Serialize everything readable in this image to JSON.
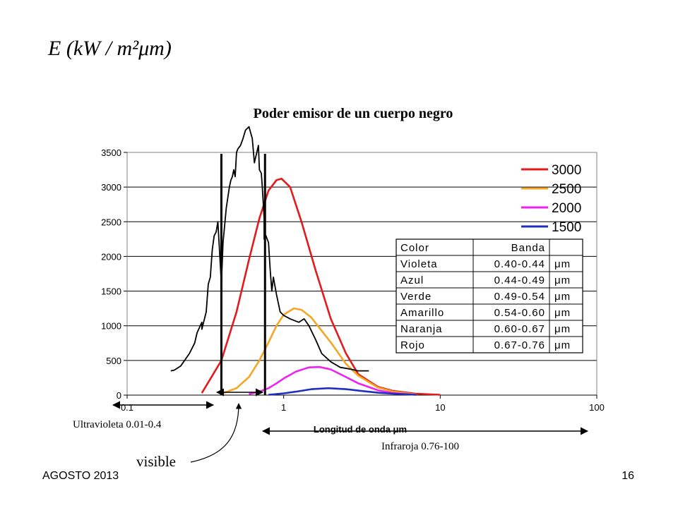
{
  "slide": {
    "yaxis_label": "E (kW / m²μm)",
    "footer_left": "AGOSTO 2013",
    "footer_right": "16",
    "uv_label": "Ultravioleta 0.01-0.4",
    "ir_label": "Infraroja 0.76-100",
    "visible_label": "visible"
  },
  "chart_data": {
    "type": "line",
    "title": "Poder emisor de un cuerpo negro",
    "xlabel": "Longitud de onda μm",
    "ylabel": "",
    "xscale": "log",
    "xlim": [
      0.1,
      100
    ],
    "ylim": [
      0,
      3500
    ],
    "xticks": [
      "0.1",
      "1",
      "10",
      "100"
    ],
    "yticks": [
      "0",
      "500",
      "1000",
      "1500",
      "2000",
      "2500",
      "3000",
      "3500"
    ],
    "grid": "horizontal",
    "legend_position": "top-right",
    "series": [
      {
        "name": "3000",
        "color": "#e31a1c",
        "x": [
          0.3,
          0.4,
          0.5,
          0.6,
          0.7,
          0.8,
          0.9,
          0.97,
          1.1,
          1.3,
          1.6,
          2.0,
          2.5,
          3.0,
          4.0,
          5.0,
          7.0,
          10.0
        ],
        "y": [
          30,
          500,
          1200,
          1950,
          2550,
          2950,
          3100,
          3120,
          3000,
          2500,
          1800,
          1100,
          600,
          300,
          120,
          60,
          20,
          5
        ]
      },
      {
        "name": "2500",
        "color": "#f5a623",
        "x": [
          0.4,
          0.5,
          0.6,
          0.7,
          0.8,
          0.9,
          1.0,
          1.16,
          1.3,
          1.5,
          2.0,
          2.5,
          3.0,
          4.0,
          5.0,
          7.0
        ],
        "y": [
          20,
          100,
          260,
          500,
          760,
          1000,
          1160,
          1250,
          1230,
          1120,
          760,
          450,
          280,
          110,
          50,
          10
        ]
      },
      {
        "name": "2000",
        "color": "#ee22ee",
        "x": [
          0.6,
          0.7,
          0.8,
          0.9,
          1.0,
          1.2,
          1.45,
          1.7,
          2.0,
          2.5,
          3.0,
          4.0,
          5.0,
          7.0
        ],
        "y": [
          15,
          50,
          100,
          170,
          240,
          340,
          400,
          405,
          370,
          260,
          170,
          70,
          30,
          5
        ]
      },
      {
        "name": "1500",
        "color": "#1f2fc4",
        "x": [
          0.8,
          0.9,
          1.0,
          1.2,
          1.5,
          1.93,
          2.5,
          3.0,
          4.0,
          5.0,
          7.0
        ],
        "y": [
          5,
          15,
          25,
          50,
          85,
          100,
          85,
          65,
          35,
          20,
          5
        ]
      },
      {
        "name": "",
        "color": "#000000",
        "x": [
          0.19,
          0.2,
          0.22,
          0.25,
          0.27,
          0.28,
          0.3,
          0.3,
          0.32,
          0.33,
          0.34,
          0.35,
          0.36,
          0.37,
          0.38,
          0.4,
          0.41,
          0.43,
          0.45,
          0.46,
          0.47,
          0.48,
          0.49,
          0.5,
          0.51,
          0.53,
          0.55,
          0.57,
          0.6,
          0.63,
          0.65,
          0.69,
          0.7,
          0.72,
          0.73,
          0.75,
          0.75,
          0.77,
          0.8,
          0.82,
          0.84,
          0.86,
          0.9,
          0.95,
          1.0,
          1.1,
          1.25,
          1.35,
          1.45,
          1.6,
          1.75,
          2.0,
          2.3,
          2.6,
          3.0,
          3.5
        ],
        "y": [
          350,
          360,
          420,
          600,
          750,
          900,
          1050,
          950,
          1200,
          1600,
          1700,
          2100,
          2300,
          2350,
          2500,
          1600,
          2200,
          2700,
          3000,
          3100,
          3150,
          3250,
          3150,
          3500,
          3550,
          3600,
          3700,
          3820,
          3870,
          3700,
          3350,
          3600,
          3250,
          3200,
          3000,
          2550,
          2250,
          2300,
          2200,
          1800,
          1500,
          1700,
          1450,
          1200,
          1150,
          1100,
          1050,
          1100,
          1000,
          800,
          600,
          480,
          400,
          380,
          350,
          350
        ]
      }
    ],
    "reference_lines_x": [
      0.4,
      0.76
    ],
    "table": {
      "headers": [
        "Color",
        "Banda",
        ""
      ],
      "rows": [
        [
          "Violeta",
          "0.40-0.44",
          "μm"
        ],
        [
          "Azul",
          "0.44-0.49",
          "μm"
        ],
        [
          "Verde",
          "0.49-0.54",
          "μm"
        ],
        [
          "Amarillo",
          "0.54-0.60",
          "μm"
        ],
        [
          "Naranja",
          "0.60-0.67",
          "μm"
        ],
        [
          "Rojo",
          "0.67-0.76",
          "μm"
        ]
      ]
    },
    "ranges": [
      {
        "name": "uv",
        "from": 0.01,
        "to": 0.4
      },
      {
        "name": "visible",
        "from": 0.4,
        "to": 0.76
      },
      {
        "name": "ir",
        "from": 0.76,
        "to": 100
      }
    ]
  }
}
